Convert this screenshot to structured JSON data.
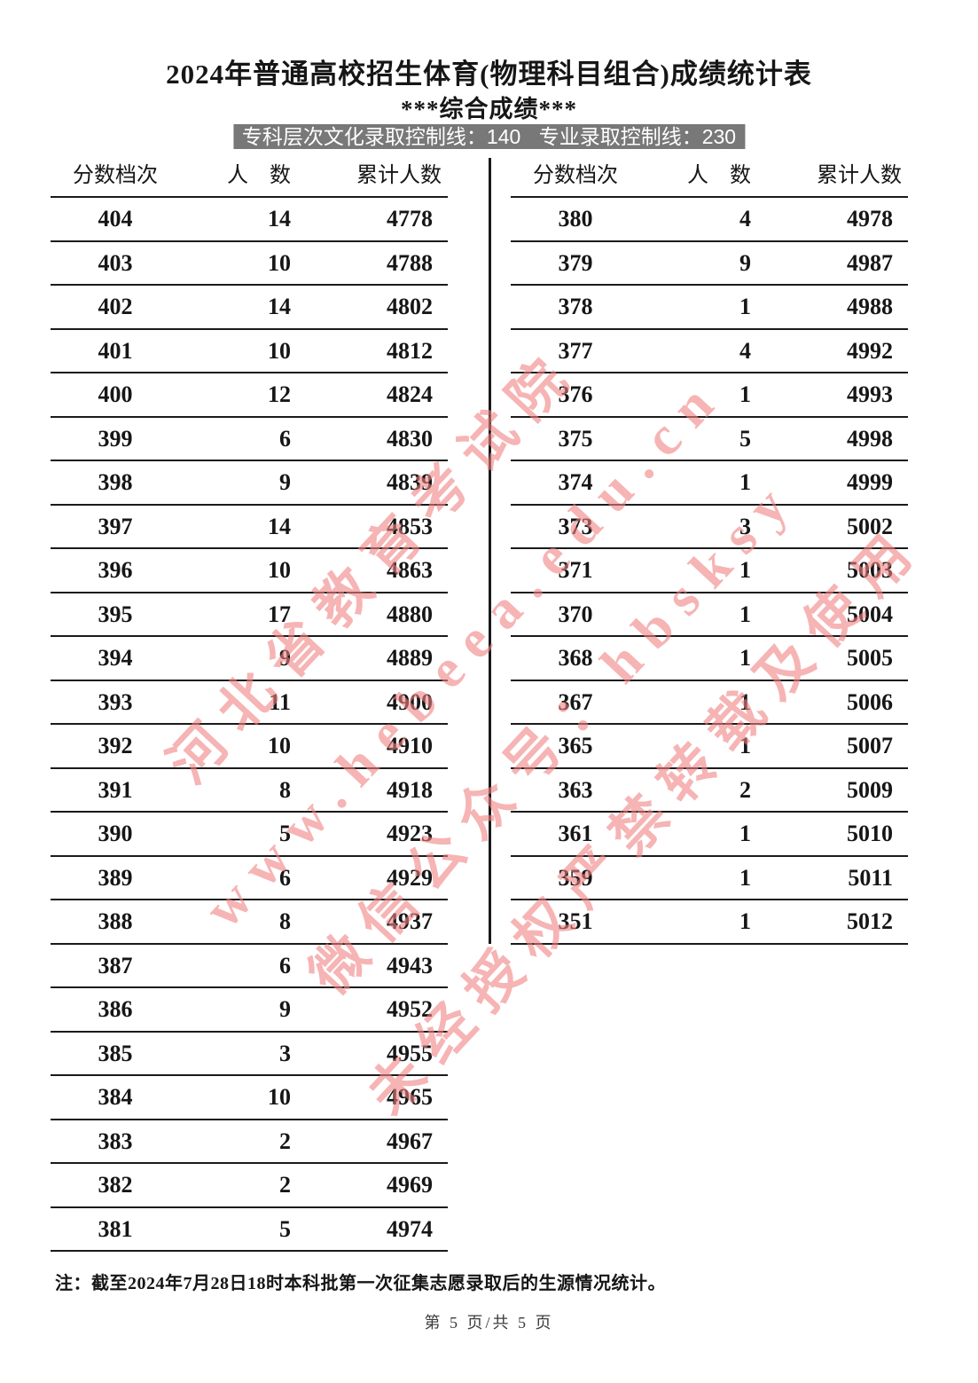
{
  "header": {
    "title": "2024年普通高校招生体育(物理科目组合)成绩统计表",
    "subtitle": "***综合成绩***",
    "banner": {
      "culture_line": "专科层次文化录取控制线：140",
      "major_line": "专业录取控制线：230"
    }
  },
  "columns": {
    "score": "分数档次",
    "count": "人　数",
    "cumulative": "累计人数"
  },
  "left_table": {
    "rows": [
      {
        "score": "404",
        "count": "14",
        "cumulative": "4778"
      },
      {
        "score": "403",
        "count": "10",
        "cumulative": "4788"
      },
      {
        "score": "402",
        "count": "14",
        "cumulative": "4802"
      },
      {
        "score": "401",
        "count": "10",
        "cumulative": "4812"
      },
      {
        "score": "400",
        "count": "12",
        "cumulative": "4824"
      },
      {
        "score": "399",
        "count": "6",
        "cumulative": "4830"
      },
      {
        "score": "398",
        "count": "9",
        "cumulative": "4839"
      },
      {
        "score": "397",
        "count": "14",
        "cumulative": "4853"
      },
      {
        "score": "396",
        "count": "10",
        "cumulative": "4863"
      },
      {
        "score": "395",
        "count": "17",
        "cumulative": "4880"
      },
      {
        "score": "394",
        "count": "9",
        "cumulative": "4889"
      },
      {
        "score": "393",
        "count": "11",
        "cumulative": "4900"
      },
      {
        "score": "392",
        "count": "10",
        "cumulative": "4910"
      },
      {
        "score": "391",
        "count": "8",
        "cumulative": "4918"
      },
      {
        "score": "390",
        "count": "5",
        "cumulative": "4923"
      },
      {
        "score": "389",
        "count": "6",
        "cumulative": "4929"
      },
      {
        "score": "388",
        "count": "8",
        "cumulative": "4937"
      },
      {
        "score": "387",
        "count": "6",
        "cumulative": "4943"
      },
      {
        "score": "386",
        "count": "9",
        "cumulative": "4952"
      },
      {
        "score": "385",
        "count": "3",
        "cumulative": "4955"
      },
      {
        "score": "384",
        "count": "10",
        "cumulative": "4965"
      },
      {
        "score": "383",
        "count": "2",
        "cumulative": "4967"
      },
      {
        "score": "382",
        "count": "2",
        "cumulative": "4969"
      },
      {
        "score": "381",
        "count": "5",
        "cumulative": "4974"
      }
    ]
  },
  "right_table": {
    "rows": [
      {
        "score": "380",
        "count": "4",
        "cumulative": "4978"
      },
      {
        "score": "379",
        "count": "9",
        "cumulative": "4987"
      },
      {
        "score": "378",
        "count": "1",
        "cumulative": "4988"
      },
      {
        "score": "377",
        "count": "4",
        "cumulative": "4992"
      },
      {
        "score": "376",
        "count": "1",
        "cumulative": "4993"
      },
      {
        "score": "375",
        "count": "5",
        "cumulative": "4998"
      },
      {
        "score": "374",
        "count": "1",
        "cumulative": "4999"
      },
      {
        "score": "373",
        "count": "3",
        "cumulative": "5002"
      },
      {
        "score": "371",
        "count": "1",
        "cumulative": "5003"
      },
      {
        "score": "370",
        "count": "1",
        "cumulative": "5004"
      },
      {
        "score": "368",
        "count": "1",
        "cumulative": "5005"
      },
      {
        "score": "367",
        "count": "1",
        "cumulative": "5006"
      },
      {
        "score": "365",
        "count": "1",
        "cumulative": "5007"
      },
      {
        "score": "363",
        "count": "2",
        "cumulative": "5009"
      },
      {
        "score": "361",
        "count": "1",
        "cumulative": "5010"
      },
      {
        "score": "359",
        "count": "1",
        "cumulative": "5011"
      },
      {
        "score": "351",
        "count": "1",
        "cumulative": "5012"
      }
    ]
  },
  "watermark": {
    "color": "#f08282",
    "lines": [
      "河北省教育考试院",
      "www.hebeea.edu.cn",
      "微信公众号：hbsksy",
      "未经授权严禁转载及使用"
    ]
  },
  "footnote": "注：截至2024年7月28日18时本科批第一次征集志愿录取后的生源情况统计。",
  "page_indicator": "第 5 页/共 5 页"
}
